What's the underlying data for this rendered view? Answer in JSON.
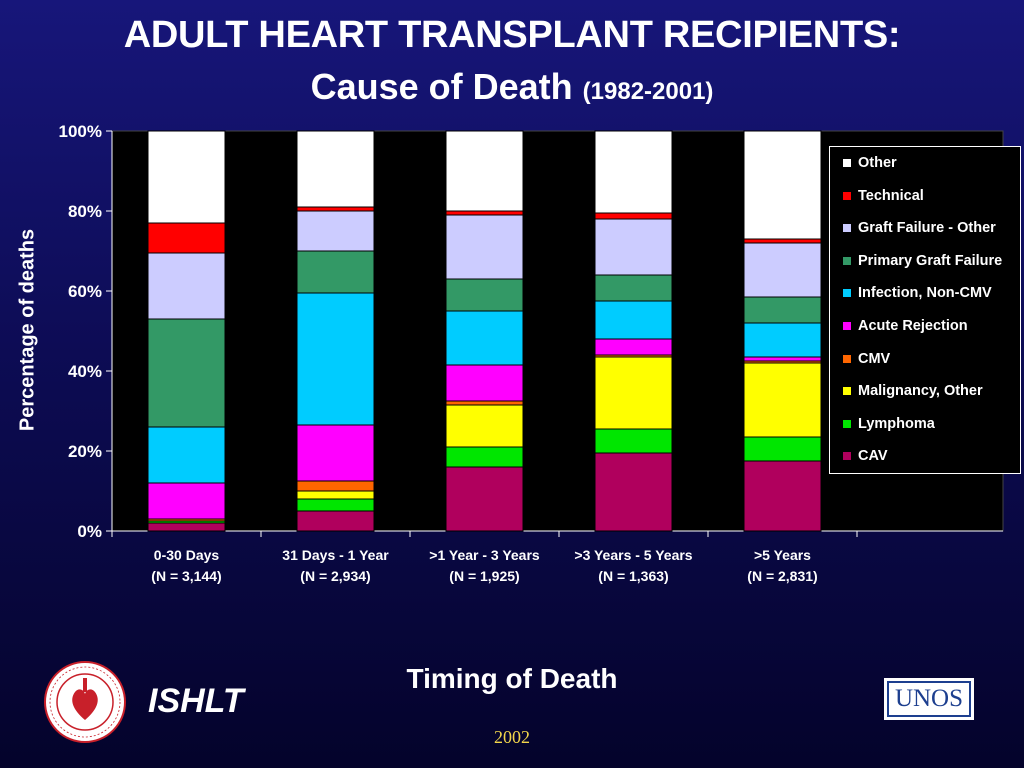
{
  "title": "ADULT HEART TRANSPLANT RECIPIENTS:",
  "subtitle_main": "Cause of Death",
  "subtitle_years": "(1982-2001)",
  "footer": {
    "org": "ISHLT",
    "year": "2002",
    "unos_text": "UNOS"
  },
  "colors": {
    "background": "#0d0c55",
    "plot_area": "#000000",
    "text": "#ffffff",
    "year": "#f2d64b"
  },
  "chart_data": {
    "type": "bar",
    "stacked": true,
    "title": "",
    "xlabel": "Timing of Death",
    "ylabel": "Percentage of deaths",
    "ylim": [
      0,
      100
    ],
    "yticks": [
      "0%",
      "20%",
      "40%",
      "60%",
      "80%",
      "100%"
    ],
    "legend_position": "right",
    "grid": false,
    "categories": [
      {
        "label": "0-30 Days",
        "n": "(N = 3,144)"
      },
      {
        "label": "31 Days - 1 Year",
        "n": "(N = 2,934)"
      },
      {
        "label": ">1 Year - 3 Years",
        "n": "(N = 1,925)"
      },
      {
        "label": ">3 Years - 5 Years",
        "n": "(N = 1,363)"
      },
      {
        "label": ">5 Years",
        "n": "(N = 2,831)"
      }
    ],
    "series": [
      {
        "name": "CAV",
        "color": "#b0005d",
        "values": [
          2,
          5,
          16,
          19.5,
          17.5
        ]
      },
      {
        "name": "Lymphoma",
        "color": "#00e600",
        "values": [
          0.5,
          3,
          5,
          6,
          6
        ]
      },
      {
        "name": "Malignancy, Other",
        "color": "#ffff00",
        "values": [
          0,
          2,
          10.5,
          18,
          18.5
        ]
      },
      {
        "name": "CMV",
        "color": "#ff6600",
        "values": [
          0.5,
          2.5,
          1,
          0.5,
          0.5
        ]
      },
      {
        "name": "Acute Rejection",
        "color": "#ff00ff",
        "values": [
          9,
          14,
          9,
          4,
          1
        ]
      },
      {
        "name": "Infection, Non-CMV",
        "color": "#00ccff",
        "values": [
          14,
          33,
          13.5,
          9.5,
          8.5
        ]
      },
      {
        "name": "Primary Graft Failure",
        "color": "#339966",
        "values": [
          27,
          10.5,
          8,
          6.5,
          6.5
        ]
      },
      {
        "name": "Graft Failure - Other",
        "color": "#ccccff",
        "values": [
          16.5,
          10,
          16,
          14,
          13.5
        ]
      },
      {
        "name": "Technical",
        "color": "#ff0000",
        "values": [
          7.5,
          1,
          1,
          1.5,
          1
        ]
      },
      {
        "name": "Other",
        "color": "#ffffff",
        "values": [
          23,
          19,
          20,
          20.5,
          27
        ]
      }
    ]
  }
}
